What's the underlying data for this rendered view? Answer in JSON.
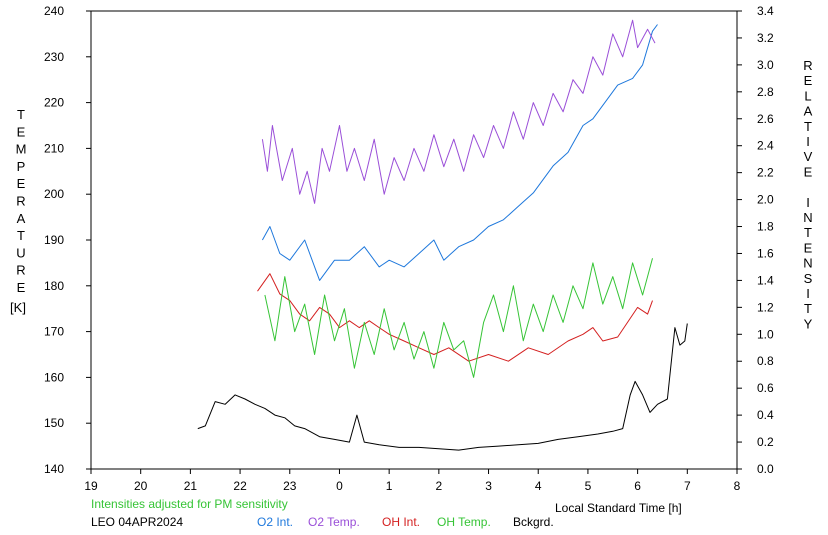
{
  "chart_data": {
    "type": "line",
    "left_axis_label_letters": [
      "T",
      "E",
      "M",
      "P",
      "E",
      "R",
      "A",
      "T",
      "U",
      "R",
      "E"
    ],
    "left_axis_unit": "[K]",
    "right_axis_label_letters": [
      "R",
      "E",
      "L",
      "A",
      "T",
      "I",
      "V",
      "E",
      "",
      "I",
      "N",
      "T",
      "E",
      "N",
      "S",
      "I",
      "T",
      "Y"
    ],
    "xlabel": "Local Standard Time [h]",
    "x_ticks": [
      "19",
      "20",
      "21",
      "22",
      "23",
      "0",
      "1",
      "2",
      "3",
      "4",
      "5",
      "6",
      "7",
      "8"
    ],
    "x_range": [
      19,
      32
    ],
    "y_left_ticks": [
      "140",
      "150",
      "160",
      "170",
      "180",
      "190",
      "200",
      "210",
      "220",
      "230",
      "240"
    ],
    "y_left_range": [
      140,
      240
    ],
    "y_right_ticks": [
      "0.0",
      "0.2",
      "0.4",
      "0.6",
      "0.8",
      "1.0",
      "1.2",
      "1.4",
      "1.6",
      "1.8",
      "2.0",
      "2.2",
      "2.4",
      "2.6",
      "2.8",
      "3.0",
      "3.2",
      "3.4"
    ],
    "y_right_range": [
      0.0,
      3.4
    ],
    "note": "Intensities adjusted for PM sensitivity",
    "station": "LEO 04APR2024",
    "legend_placement": "bottom",
    "series": [
      {
        "name": "O2 Int.",
        "color": "#1e78dc",
        "axis": "right",
        "points": [
          [
            22.45,
            1.7
          ],
          [
            22.6,
            1.8
          ],
          [
            22.8,
            1.6
          ],
          [
            23.0,
            1.55
          ],
          [
            23.3,
            1.7
          ],
          [
            23.6,
            1.4
          ],
          [
            23.9,
            1.55
          ],
          [
            24.2,
            1.55
          ],
          [
            24.5,
            1.65
          ],
          [
            24.8,
            1.5
          ],
          [
            25.0,
            1.55
          ],
          [
            25.3,
            1.5
          ],
          [
            25.6,
            1.6
          ],
          [
            25.9,
            1.7
          ],
          [
            26.1,
            1.55
          ],
          [
            26.4,
            1.65
          ],
          [
            26.7,
            1.7
          ],
          [
            27.0,
            1.8
          ],
          [
            27.3,
            1.85
          ],
          [
            27.6,
            1.95
          ],
          [
            27.9,
            2.05
          ],
          [
            28.1,
            2.15
          ],
          [
            28.3,
            2.25
          ],
          [
            28.6,
            2.35
          ],
          [
            28.9,
            2.55
          ],
          [
            29.1,
            2.6
          ],
          [
            29.4,
            2.75
          ],
          [
            29.6,
            2.85
          ],
          [
            29.9,
            2.9
          ],
          [
            30.1,
            3.0
          ],
          [
            30.3,
            3.25
          ],
          [
            30.4,
            3.3
          ]
        ]
      },
      {
        "name": "O2 Temp.",
        "color": "#9a4fd8",
        "axis": "left",
        "points": [
          [
            22.45,
            212
          ],
          [
            22.55,
            205
          ],
          [
            22.65,
            215
          ],
          [
            22.85,
            203
          ],
          [
            23.05,
            210
          ],
          [
            23.2,
            200
          ],
          [
            23.35,
            205
          ],
          [
            23.5,
            198
          ],
          [
            23.65,
            210
          ],
          [
            23.8,
            205
          ],
          [
            24.0,
            215
          ],
          [
            24.15,
            205
          ],
          [
            24.3,
            210
          ],
          [
            24.5,
            203
          ],
          [
            24.7,
            212
          ],
          [
            24.9,
            200
          ],
          [
            25.1,
            208
          ],
          [
            25.3,
            203
          ],
          [
            25.5,
            210
          ],
          [
            25.7,
            205
          ],
          [
            25.9,
            213
          ],
          [
            26.1,
            206
          ],
          [
            26.3,
            212
          ],
          [
            26.5,
            205
          ],
          [
            26.7,
            213
          ],
          [
            26.9,
            208
          ],
          [
            27.1,
            215
          ],
          [
            27.3,
            210
          ],
          [
            27.5,
            218
          ],
          [
            27.7,
            212
          ],
          [
            27.9,
            220
          ],
          [
            28.1,
            215
          ],
          [
            28.3,
            222
          ],
          [
            28.5,
            218
          ],
          [
            28.7,
            225
          ],
          [
            28.9,
            222
          ],
          [
            29.1,
            230
          ],
          [
            29.3,
            226
          ],
          [
            29.5,
            235
          ],
          [
            29.7,
            230
          ],
          [
            29.9,
            238
          ],
          [
            30.0,
            232
          ],
          [
            30.2,
            236
          ],
          [
            30.35,
            233
          ]
        ]
      },
      {
        "name": "OH Int.",
        "color": "#d42020",
        "axis": "right",
        "points": [
          [
            22.35,
            1.32
          ],
          [
            22.6,
            1.45
          ],
          [
            22.8,
            1.3
          ],
          [
            23.0,
            1.25
          ],
          [
            23.2,
            1.15
          ],
          [
            23.4,
            1.1
          ],
          [
            23.6,
            1.2
          ],
          [
            23.8,
            1.15
          ],
          [
            24.0,
            1.05
          ],
          [
            24.2,
            1.1
          ],
          [
            24.4,
            1.05
          ],
          [
            24.6,
            1.1
          ],
          [
            24.8,
            1.05
          ],
          [
            25.0,
            1.0
          ],
          [
            25.3,
            0.95
          ],
          [
            25.6,
            0.9
          ],
          [
            25.9,
            0.85
          ],
          [
            26.2,
            0.9
          ],
          [
            26.6,
            0.8
          ],
          [
            27.0,
            0.85
          ],
          [
            27.4,
            0.8
          ],
          [
            27.8,
            0.9
          ],
          [
            28.2,
            0.85
          ],
          [
            28.6,
            0.95
          ],
          [
            28.9,
            1.0
          ],
          [
            29.1,
            1.05
          ],
          [
            29.3,
            0.95
          ],
          [
            29.6,
            0.98
          ],
          [
            30.0,
            1.2
          ],
          [
            30.2,
            1.15
          ],
          [
            30.3,
            1.25
          ]
        ]
      },
      {
        "name": "OH Temp.",
        "color": "#36c436",
        "axis": "left",
        "points": [
          [
            22.5,
            178
          ],
          [
            22.7,
            168
          ],
          [
            22.9,
            182
          ],
          [
            23.1,
            170
          ],
          [
            23.3,
            176
          ],
          [
            23.5,
            165
          ],
          [
            23.7,
            178
          ],
          [
            23.9,
            168
          ],
          [
            24.1,
            175
          ],
          [
            24.3,
            162
          ],
          [
            24.5,
            172
          ],
          [
            24.7,
            165
          ],
          [
            24.9,
            175
          ],
          [
            25.1,
            166
          ],
          [
            25.3,
            172
          ],
          [
            25.5,
            164
          ],
          [
            25.7,
            170
          ],
          [
            25.9,
            162
          ],
          [
            26.1,
            172
          ],
          [
            26.3,
            166
          ],
          [
            26.5,
            168
          ],
          [
            26.7,
            160
          ],
          [
            26.9,
            172
          ],
          [
            27.1,
            178
          ],
          [
            27.3,
            170
          ],
          [
            27.5,
            180
          ],
          [
            27.7,
            168
          ],
          [
            27.9,
            176
          ],
          [
            28.1,
            170
          ],
          [
            28.3,
            178
          ],
          [
            28.5,
            172
          ],
          [
            28.7,
            180
          ],
          [
            28.9,
            175
          ],
          [
            29.1,
            185
          ],
          [
            29.3,
            176
          ],
          [
            29.5,
            182
          ],
          [
            29.7,
            175
          ],
          [
            29.9,
            185
          ],
          [
            30.1,
            178
          ],
          [
            30.3,
            186
          ]
        ]
      },
      {
        "name": "Bckgrd.",
        "color": "#000000",
        "axis": "right",
        "points": [
          [
            21.15,
            0.3
          ],
          [
            21.3,
            0.32
          ],
          [
            21.5,
            0.5
          ],
          [
            21.7,
            0.48
          ],
          [
            21.9,
            0.55
          ],
          [
            22.1,
            0.52
          ],
          [
            22.3,
            0.48
          ],
          [
            22.5,
            0.45
          ],
          [
            22.7,
            0.4
          ],
          [
            22.9,
            0.38
          ],
          [
            23.1,
            0.32
          ],
          [
            23.3,
            0.3
          ],
          [
            23.6,
            0.24
          ],
          [
            23.9,
            0.22
          ],
          [
            24.2,
            0.2
          ],
          [
            24.35,
            0.4
          ],
          [
            24.5,
            0.2
          ],
          [
            24.8,
            0.18
          ],
          [
            25.2,
            0.16
          ],
          [
            25.6,
            0.16
          ],
          [
            26.0,
            0.15
          ],
          [
            26.4,
            0.14
          ],
          [
            26.8,
            0.16
          ],
          [
            27.2,
            0.17
          ],
          [
            27.6,
            0.18
          ],
          [
            28.0,
            0.19
          ],
          [
            28.4,
            0.22
          ],
          [
            28.8,
            0.24
          ],
          [
            29.2,
            0.26
          ],
          [
            29.5,
            0.28
          ],
          [
            29.7,
            0.3
          ],
          [
            29.85,
            0.55
          ],
          [
            29.95,
            0.65
          ],
          [
            30.1,
            0.55
          ],
          [
            30.25,
            0.42
          ],
          [
            30.4,
            0.48
          ],
          [
            30.6,
            0.52
          ],
          [
            30.75,
            1.05
          ],
          [
            30.85,
            0.92
          ],
          [
            30.95,
            0.95
          ],
          [
            31.0,
            1.08
          ]
        ]
      }
    ]
  }
}
